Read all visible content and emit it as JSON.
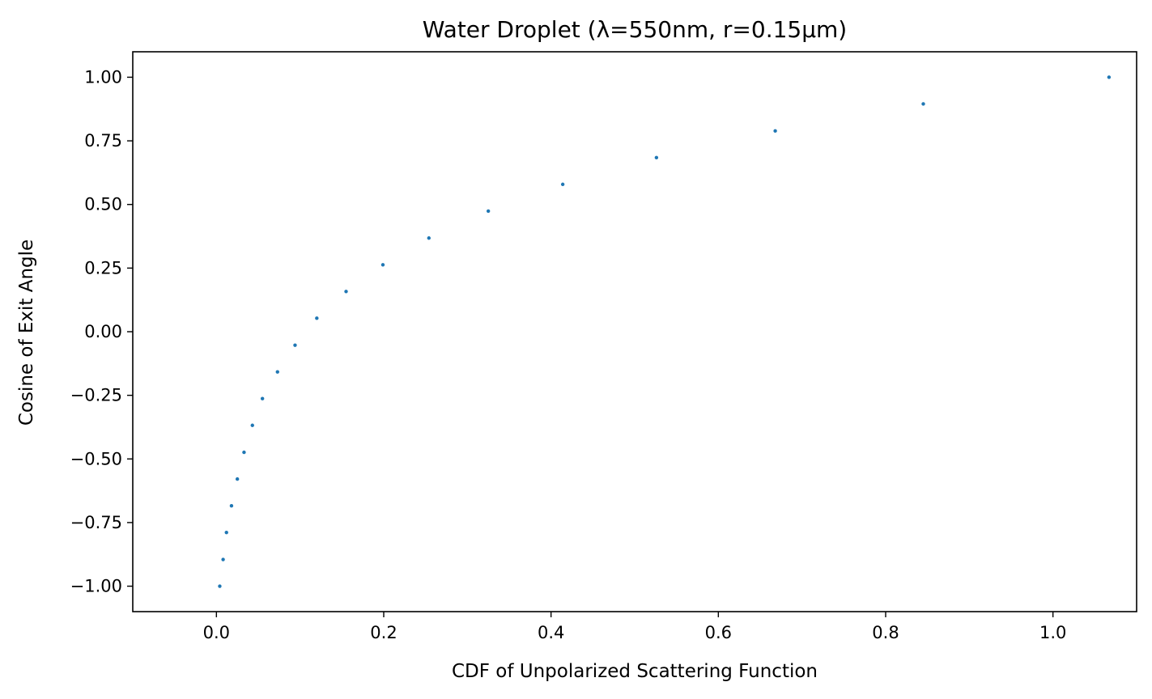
{
  "chart_data": {
    "type": "scatter",
    "title": "Water Droplet (λ=550nm, r=0.15μm)",
    "xlabel": "CDF of Unpolarized Scattering Function",
    "ylabel": "Cosine of Exit Angle",
    "xlim": [
      -0.1,
      1.1
    ],
    "ylim": [
      -1.1,
      1.1
    ],
    "xticks": [
      0.0,
      0.2,
      0.4,
      0.6,
      0.8,
      1.0
    ],
    "xtick_labels": [
      "0.0",
      "0.2",
      "0.4",
      "0.6",
      "0.8",
      "1.0"
    ],
    "yticks": [
      -1.0,
      -0.75,
      -0.5,
      -0.25,
      0.0,
      0.25,
      0.5,
      0.75,
      1.0
    ],
    "ytick_labels": [
      "−1.00",
      "−0.75",
      "−0.50",
      "−0.25",
      "0.00",
      "0.25",
      "0.50",
      "0.75",
      "1.00"
    ],
    "grid": false,
    "marker_color": "#1f77b4",
    "points": [
      {
        "x": 0.004,
        "y": -1.0
      },
      {
        "x": 0.008,
        "y": -0.895
      },
      {
        "x": 0.012,
        "y": -0.789
      },
      {
        "x": 0.018,
        "y": -0.684
      },
      {
        "x": 0.025,
        "y": -0.579
      },
      {
        "x": 0.033,
        "y": -0.474
      },
      {
        "x": 0.043,
        "y": -0.368
      },
      {
        "x": 0.055,
        "y": -0.263
      },
      {
        "x": 0.073,
        "y": -0.158
      },
      {
        "x": 0.094,
        "y": -0.053
      },
      {
        "x": 0.12,
        "y": 0.053
      },
      {
        "x": 0.155,
        "y": 0.158
      },
      {
        "x": 0.199,
        "y": 0.263
      },
      {
        "x": 0.254,
        "y": 0.368
      },
      {
        "x": 0.325,
        "y": 0.474
      },
      {
        "x": 0.414,
        "y": 0.579
      },
      {
        "x": 0.526,
        "y": 0.684
      },
      {
        "x": 0.668,
        "y": 0.789
      },
      {
        "x": 0.845,
        "y": 0.895
      },
      {
        "x": 1.067,
        "y": 1.0
      }
    ]
  }
}
